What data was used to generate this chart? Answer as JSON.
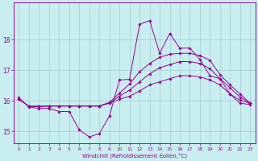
{
  "xlabel": "Windchill (Refroidissement éolien,°C)",
  "ylabel": "",
  "bg_color": "#c8eef0",
  "grid_color": "#a0cdd0",
  "line_color": "#990099",
  "xlim": [
    -0.5,
    23.5
  ],
  "ylim": [
    14.6,
    19.2
  ],
  "yticks": [
    15,
    16,
    17,
    18
  ],
  "xticks": [
    0,
    1,
    2,
    3,
    4,
    5,
    6,
    7,
    8,
    9,
    10,
    11,
    12,
    13,
    14,
    15,
    16,
    17,
    18,
    19,
    20,
    21,
    22,
    23
  ],
  "series": [
    [
      16.1,
      15.8,
      15.75,
      15.75,
      15.65,
      15.65,
      15.05,
      14.82,
      14.93,
      15.5,
      16.68,
      16.7,
      18.5,
      18.62,
      17.55,
      18.2,
      17.72,
      17.72,
      17.35,
      16.82,
      16.72,
      16.22,
      15.92,
      15.88
    ],
    [
      16.05,
      15.82,
      15.82,
      15.83,
      15.83,
      15.83,
      15.83,
      15.83,
      15.83,
      15.95,
      16.25,
      16.55,
      16.95,
      17.22,
      17.42,
      17.52,
      17.55,
      17.55,
      17.48,
      17.32,
      16.85,
      16.52,
      16.22,
      15.92
    ],
    [
      16.05,
      15.82,
      15.82,
      15.83,
      15.83,
      15.83,
      15.83,
      15.83,
      15.83,
      15.93,
      16.15,
      16.35,
      16.62,
      16.88,
      17.08,
      17.18,
      17.28,
      17.28,
      17.22,
      17.05,
      16.72,
      16.42,
      16.12,
      15.92
    ],
    [
      16.05,
      15.82,
      15.82,
      15.83,
      15.83,
      15.83,
      15.83,
      15.83,
      15.83,
      15.92,
      16.05,
      16.15,
      16.32,
      16.52,
      16.62,
      16.72,
      16.82,
      16.82,
      16.78,
      16.68,
      16.52,
      16.22,
      16.02,
      15.92
    ]
  ]
}
